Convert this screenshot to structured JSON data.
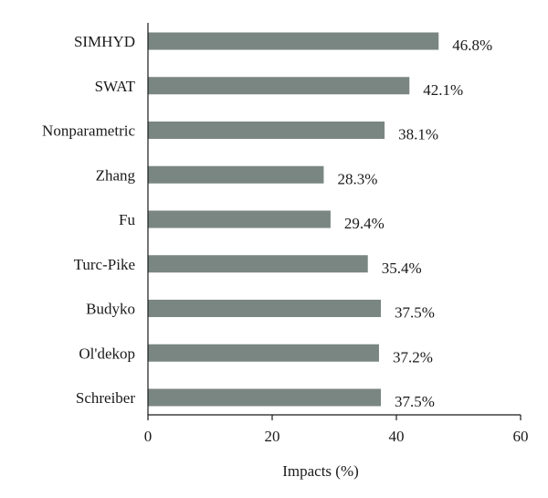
{
  "chart_data": {
    "type": "bar",
    "orientation": "horizontal",
    "categories": [
      "SIMHYD",
      "SWAT",
      "Nonparametric",
      "Zhang",
      "Fu",
      "Turc-Pike",
      "Budyko",
      "Ol'dekop",
      "Schreiber"
    ],
    "values": [
      46.8,
      42.1,
      38.1,
      28.3,
      29.4,
      35.4,
      37.5,
      37.2,
      37.5
    ],
    "value_labels": [
      "46.8%",
      "42.1%",
      "38.1%",
      "28.3%",
      "29.4%",
      "35.4%",
      "37.5%",
      "37.2%",
      "37.5%"
    ],
    "title": "",
    "xlabel": "Impacts (%)",
    "ylabel": "",
    "xlim": [
      0,
      60
    ],
    "xticks": [
      0,
      20,
      40,
      60
    ],
    "grid": false,
    "legend": "none",
    "bar_color": "#7a8682"
  }
}
